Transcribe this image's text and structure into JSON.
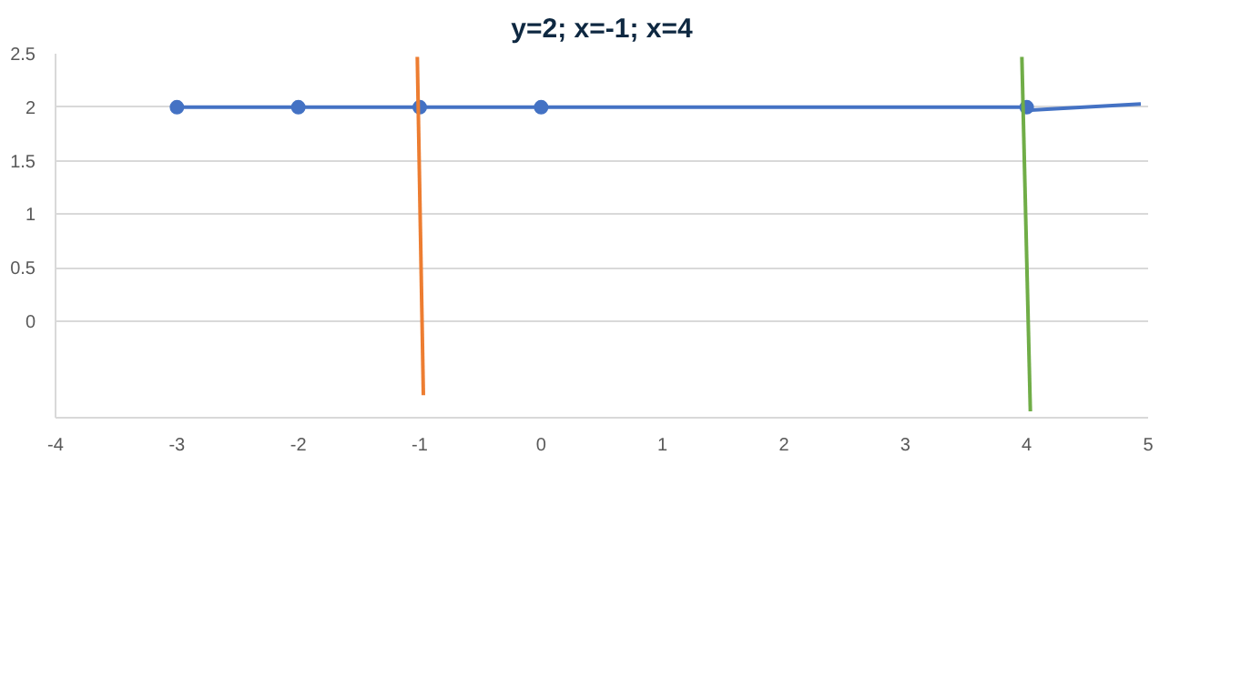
{
  "chart_data": {
    "type": "line",
    "title": "y=2; x=-1; x=4",
    "xlim": [
      -4,
      5
    ],
    "ylim": [
      -0.9,
      2.5
    ],
    "xticks": [
      -4,
      -3,
      -2,
      -1,
      0,
      1,
      2,
      3,
      4,
      5
    ],
    "yticks": [
      0,
      0.5,
      1,
      1.5,
      2,
      2.5
    ],
    "grid": "y",
    "series": [
      {
        "color": "#4472c4",
        "marker": "circle",
        "x": [
          -3,
          -2,
          -1,
          0,
          4
        ],
        "values": [
          2,
          2,
          2,
          2,
          2
        ]
      },
      {
        "color": "#4472c4",
        "marker": "none",
        "x": [
          4,
          4.94
        ],
        "values": [
          1.97,
          2.03
        ]
      },
      {
        "color": "#ed7d31",
        "marker": "none",
        "x": [
          -1.02,
          -0.97
        ],
        "values": [
          2.47,
          -0.69
        ]
      },
      {
        "color": "#70ad47",
        "marker": "none",
        "x": [
          3.96,
          4.03
        ],
        "values": [
          2.47,
          -0.84
        ]
      }
    ]
  }
}
